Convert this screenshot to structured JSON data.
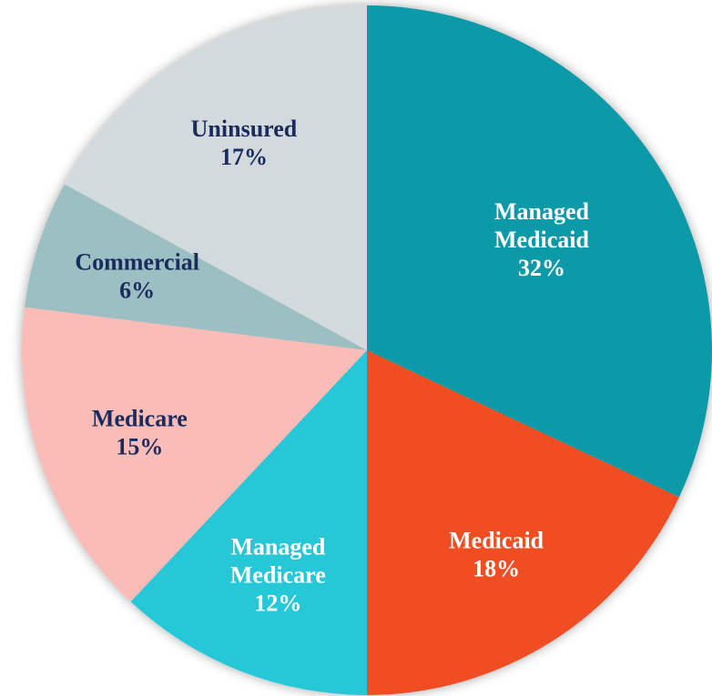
{
  "chart_data": {
    "type": "pie",
    "categories": [
      "Managed Medicaid",
      "Medicaid",
      "Managed Medicare",
      "Medicare",
      "Commercial",
      "Uninsured"
    ],
    "values": [
      32,
      18,
      12,
      15,
      6,
      17
    ],
    "value_labels": [
      "32%",
      "18%",
      "12%",
      "15%",
      "6%",
      "17%"
    ],
    "colors": [
      "#0a9aa8",
      "#f04e23",
      "#27c7d6",
      "#f9bcb6",
      "#9bbfc2",
      "#d3dadd"
    ],
    "label_colors": [
      "#ffffff",
      "#ffffff",
      "#ffffff",
      "#1a2b5e",
      "#1a2b5e",
      "#1a2b5e"
    ]
  }
}
